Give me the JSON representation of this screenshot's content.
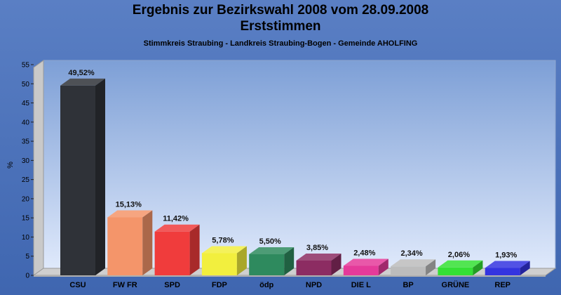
{
  "chart_data": {
    "type": "bar",
    "title": "Ergebnis zur Bezirkswahl 2008 vom 28.09.2008\nErststimmen",
    "subtitle": "Stimmkreis Straubing - Landkreis Straubing-Bogen - Gemeinde AHOLFING",
    "xlabel": "",
    "ylabel": "%",
    "ylim": [
      0,
      55
    ],
    "yticks": [
      0,
      5,
      10,
      15,
      20,
      25,
      30,
      35,
      40,
      45,
      50,
      55
    ],
    "grid": false,
    "categories": [
      "CSU",
      "FW FR",
      "SPD",
      "FDP",
      "ödp",
      "NPD",
      "DIE L",
      "BP",
      "GRÜNE",
      "REP"
    ],
    "values": [
      49.52,
      15.13,
      11.42,
      5.78,
      5.5,
      3.85,
      2.48,
      2.34,
      2.06,
      1.93
    ],
    "value_labels": [
      "49,52%",
      "15,13%",
      "11,42%",
      "5,78%",
      "5,50%",
      "3,85%",
      "2,48%",
      "2,34%",
      "2,06%",
      "1,93%"
    ],
    "colors": [
      "#2f3238",
      "#f4956a",
      "#f03c3c",
      "#f2ef3e",
      "#2e8a5e",
      "#8c2c62",
      "#e53a9a",
      "#bcbcbc",
      "#34e034",
      "#3434e0"
    ]
  }
}
